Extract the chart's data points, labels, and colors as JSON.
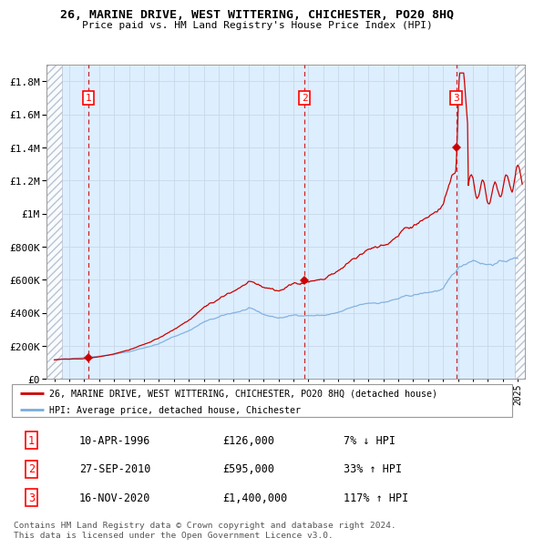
{
  "title": "26, MARINE DRIVE, WEST WITTERING, CHICHESTER, PO20 8HQ",
  "subtitle": "Price paid vs. HM Land Registry's House Price Index (HPI)",
  "xlim": [
    1993.5,
    2025.5
  ],
  "ylim": [
    0,
    1900000
  ],
  "yticks": [
    0,
    200000,
    400000,
    600000,
    800000,
    1000000,
    1200000,
    1400000,
    1600000,
    1800000
  ],
  "ytick_labels": [
    "£0",
    "£200K",
    "£400K",
    "£600K",
    "£800K",
    "£1M",
    "£1.2M",
    "£1.4M",
    "£1.6M",
    "£1.8M"
  ],
  "sale_dates": [
    1996.27,
    2010.74,
    2020.88
  ],
  "sale_prices": [
    126000,
    595000,
    1400000
  ],
  "sale_labels": [
    "1",
    "2",
    "3"
  ],
  "hpi_line_color": "#7aacdc",
  "price_line_color": "#cc0000",
  "sale_dot_color": "#cc0000",
  "vline_color": "#cc0000",
  "grid_color": "#c8d8e8",
  "bg_color": "#ddeeff",
  "legend_entries": [
    "26, MARINE DRIVE, WEST WITTERING, CHICHESTER, PO20 8HQ (detached house)",
    "HPI: Average price, detached house, Chichester"
  ],
  "table_rows": [
    [
      "1",
      "10-APR-1996",
      "£126,000",
      "7% ↓ HPI"
    ],
    [
      "2",
      "27-SEP-2010",
      "£595,000",
      "33% ↑ HPI"
    ],
    [
      "3",
      "16-NOV-2020",
      "£1,400,000",
      "117% ↑ HPI"
    ]
  ],
  "footnote": "Contains HM Land Registry data © Crown copyright and database right 2024.\nThis data is licensed under the Open Government Licence v3.0."
}
